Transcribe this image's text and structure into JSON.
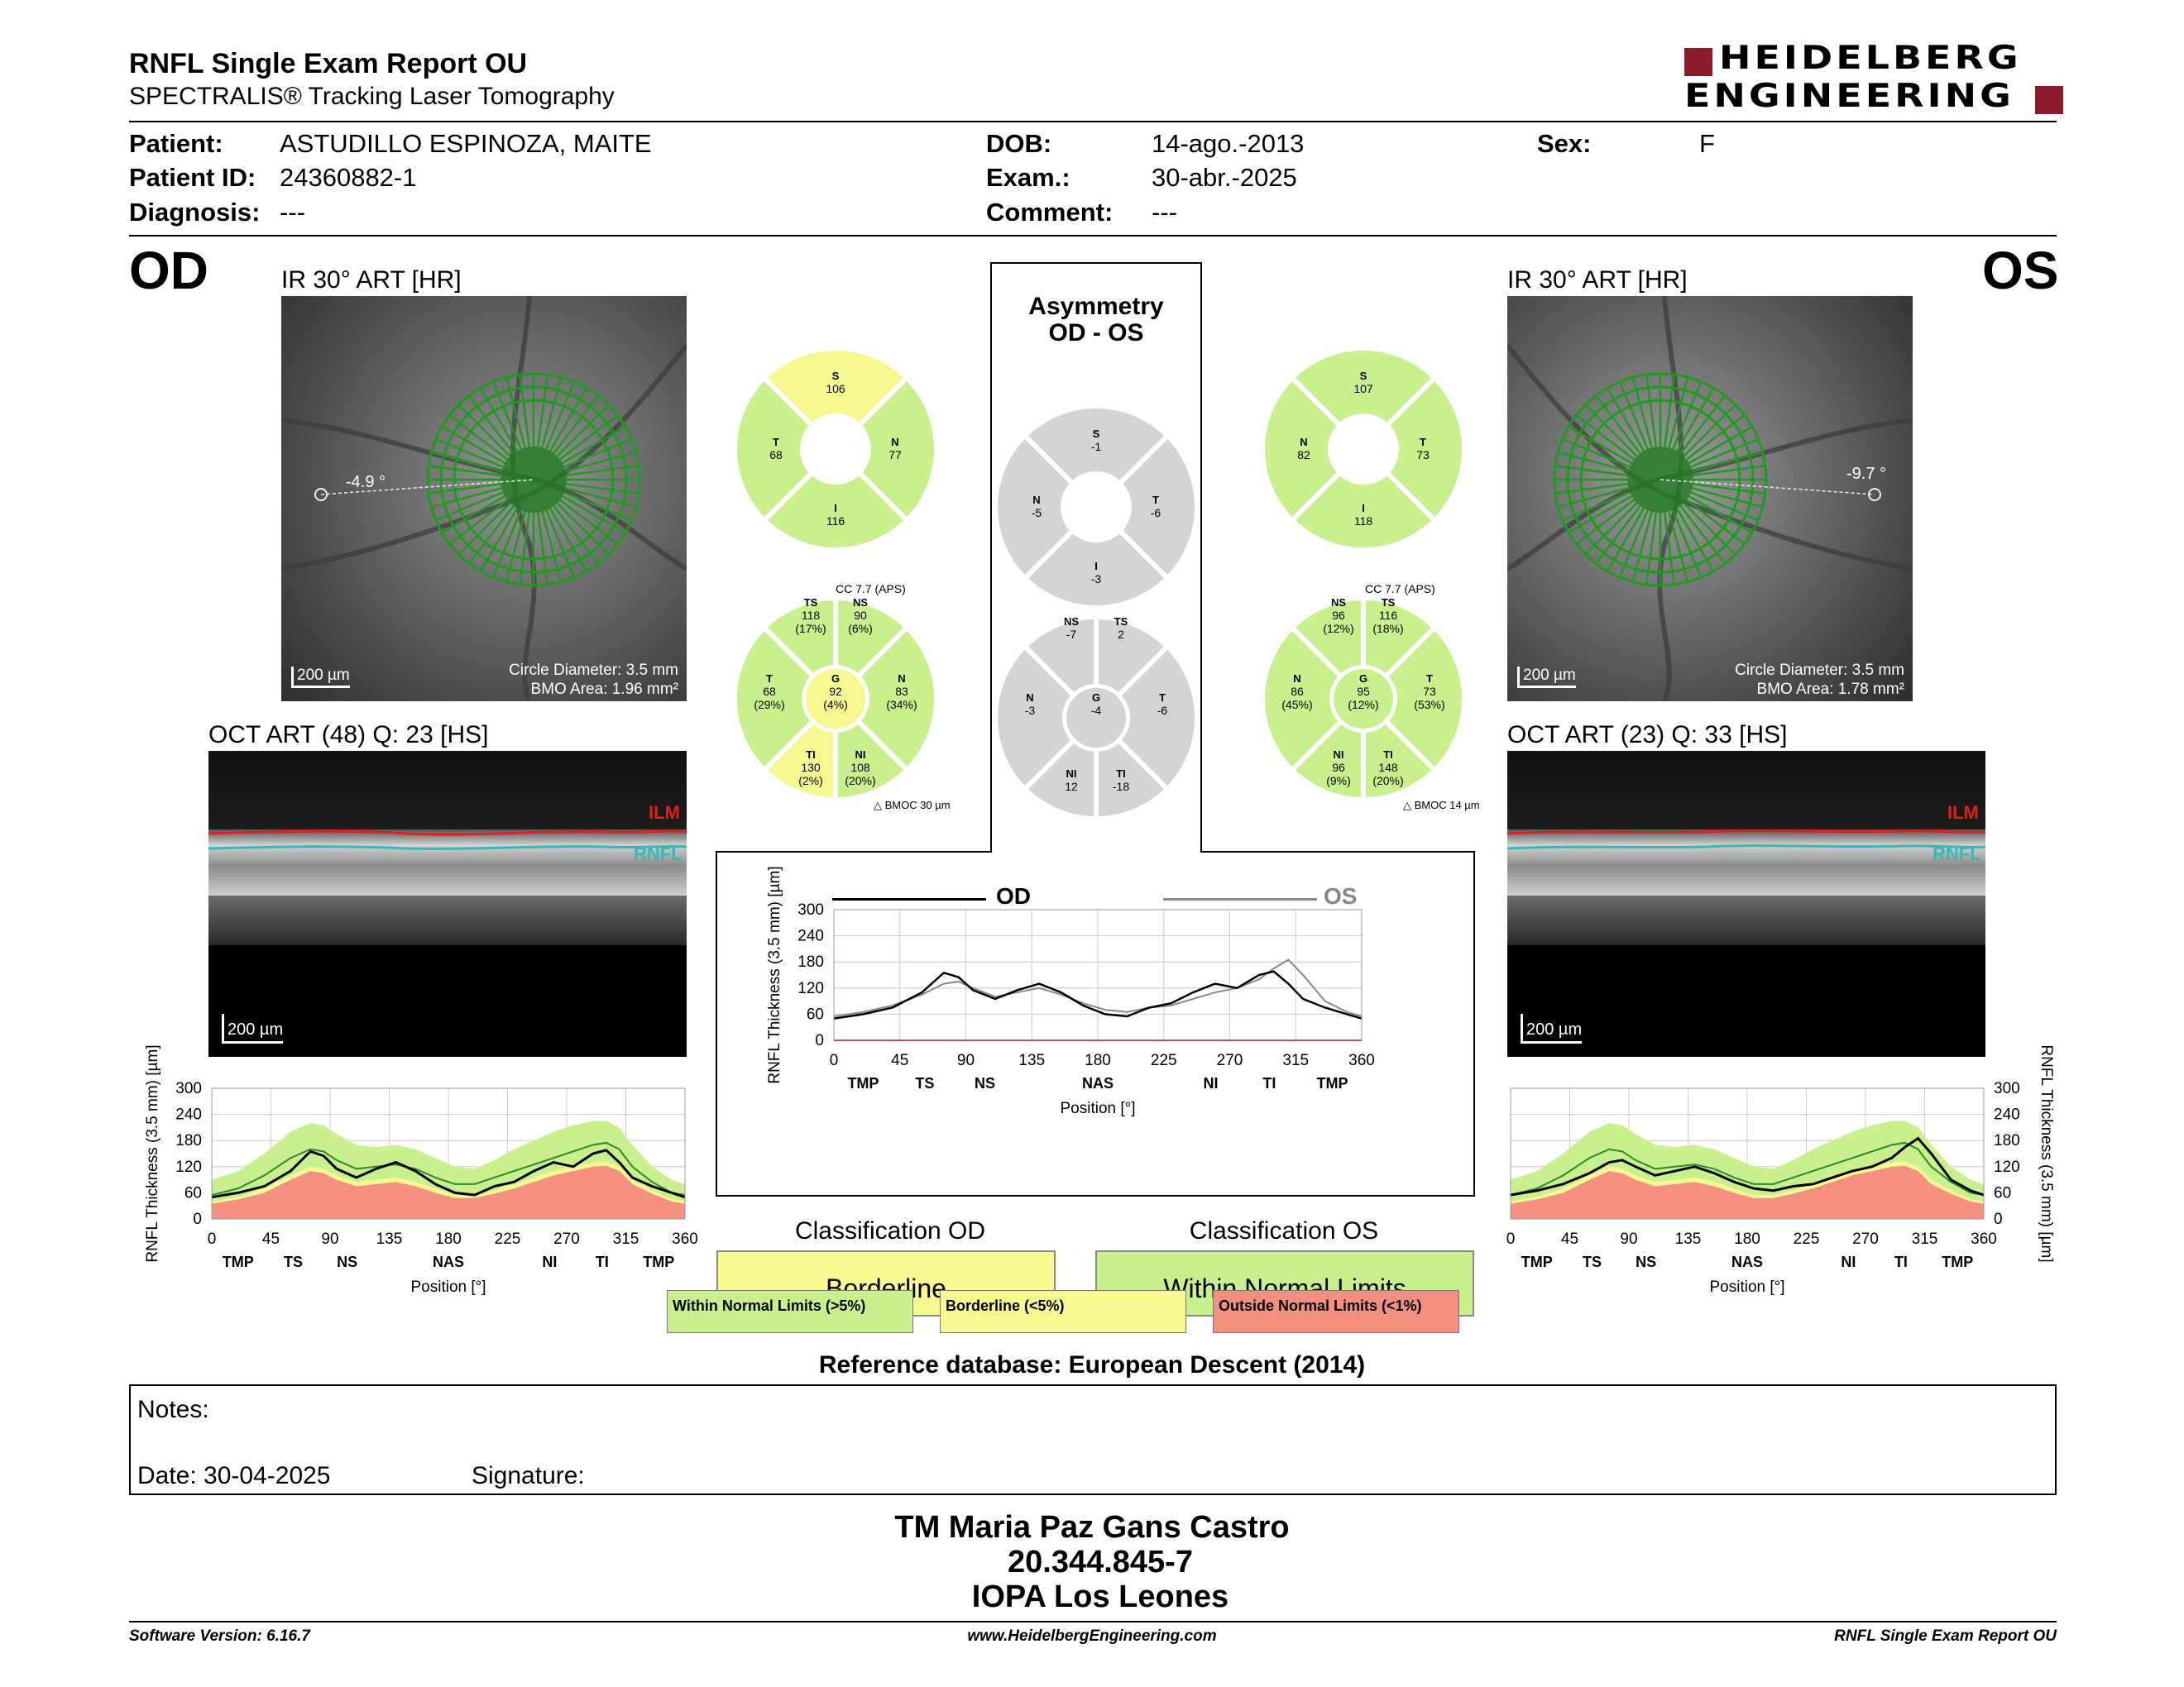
{
  "header": {
    "title": "RNFL Single Exam Report OU",
    "subtitle": "SPECTRALIS® Tracking Laser Tomography",
    "logo_line1": "HEIDELBERG",
    "logo_line2": "ENGINEERING"
  },
  "patient": {
    "patient_label": "Patient:",
    "patient_value": "ASTUDILLO ESPINOZA, MAITE",
    "id_label": "Patient ID:",
    "id_value": "24360882-1",
    "diagnosis_label": "Diagnosis:",
    "diagnosis_value": "---",
    "dob_label": "DOB:",
    "dob_value": "14-ago.-2013",
    "exam_label": "Exam.:",
    "exam_value": "30-abr.-2025",
    "comment_label": "Comment:",
    "comment_value": "---",
    "sex_label": "Sex:",
    "sex_value": "F"
  },
  "od": {
    "eye": "OD",
    "ir_title": "IR 30° ART [HR]",
    "angle": "-4.9 °",
    "circle_diameter": "Circle Diameter: 3.5 mm",
    "bmo_area": "BMO Area: 1.96 mm²",
    "scale": "200 µm",
    "oct_title": "OCT ART (48) Q: 23 [HS]",
    "oct_scale": "200 µm",
    "ilm": "ILM",
    "rnfl": "RNFL",
    "quad": {
      "S": "106",
      "T": "68",
      "N": "77",
      "I": "116"
    },
    "sector_cc": "CC 7.7 (APS)",
    "sector_bmoc": "BMOC 30 µm",
    "sectors": {
      "TS": "118",
      "TS_pct": "(17%)",
      "NS": "90",
      "NS_pct": "(6%)",
      "T": "68",
      "T_pct": "(29%)",
      "G": "92",
      "G_pct": "(4%)",
      "N": "83",
      "N_pct": "(34%)",
      "TI": "130",
      "TI_pct": "(2%)",
      "NI": "108",
      "NI_pct": "(20%)"
    },
    "classification_title": "Classification OD",
    "classification": "Borderline"
  },
  "os": {
    "eye": "OS",
    "ir_title": "IR 30° ART [HR]",
    "angle": "-9.7 °",
    "circle_diameter": "Circle Diameter: 3.5 mm",
    "bmo_area": "BMO Area: 1.78 mm²",
    "scale": "200 µm",
    "oct_title": "OCT ART (23) Q: 33 [HS]",
    "oct_scale": "200 µm",
    "ilm": "ILM",
    "rnfl": "RNFL",
    "quad": {
      "S": "107",
      "N": "82",
      "T": "73",
      "I": "118"
    },
    "sector_cc": "CC 7.7 (APS)",
    "sector_bmoc": "BMOC 14 µm",
    "sectors": {
      "NS": "96",
      "NS_pct": "(12%)",
      "TS": "116",
      "TS_pct": "(18%)",
      "N": "86",
      "N_pct": "(45%)",
      "G": "95",
      "G_pct": "(12%)",
      "T": "73",
      "T_pct": "(53%)",
      "NI": "96",
      "NI_pct": "(9%)",
      "TI": "148",
      "TI_pct": "(20%)"
    },
    "classification_title": "Classification OS",
    "classification": "Within Normal Limits"
  },
  "asymmetry": {
    "title1": "Asymmetry",
    "title2": "OD - OS",
    "quad": {
      "S": "-1",
      "N": "-5",
      "T": "-6",
      "I": "-3"
    },
    "sectors": {
      "NS": "-7",
      "TS": "2",
      "N": "-3",
      "G": "-4",
      "T": "-6",
      "NI": "12",
      "TI": "-18"
    }
  },
  "labels": {
    "S": "S",
    "T": "T",
    "N": "N",
    "I": "I",
    "G": "G",
    "TS": "TS",
    "NS": "NS",
    "TI": "TI",
    "NI": "NI"
  },
  "colors": {
    "normal": "#c8f08c",
    "borderline": "#f8f890",
    "outside": "#f49080",
    "gray": "#d4d4d4",
    "ring_green": "#1f9a1f"
  },
  "legend": {
    "wnl": "Within Normal Limits (>5%)",
    "borderline": "Borderline (<5%)",
    "onl": "Outside Normal Limits (<1%)"
  },
  "reference": "Reference database: European Descent (2014)",
  "notes": {
    "label": "Notes:",
    "date": "Date: 30-04-2025",
    "signature": "Signature:"
  },
  "footer_block": {
    "name": "TM Maria Paz Gans Castro",
    "id": "20.344.845-7",
    "org": "IOPA Los Leones"
  },
  "footer": {
    "version": "Software Version: 6.16.7",
    "url": "www.HeidelbergEngineering.com",
    "report": "RNFL Single Exam Report OU"
  },
  "chart_data": [
    {
      "type": "line",
      "name_ref": "OD profile",
      "ylabel": "RNFL Thickness (3.5 mm) [µm]",
      "xlabel": "Position [°]",
      "ylim": [
        0,
        300
      ],
      "xlim": [
        0,
        360
      ],
      "yticks": [
        0,
        60,
        120,
        180,
        240,
        300
      ],
      "xticks": [
        0,
        45,
        90,
        135,
        180,
        225,
        270,
        315,
        360
      ],
      "region_labels": [
        {
          "x": 20,
          "t": "TMP"
        },
        {
          "x": 62,
          "t": "TS"
        },
        {
          "x": 103,
          "t": "NS"
        },
        {
          "x": 180,
          "t": "NAS"
        },
        {
          "x": 257,
          "t": "NI"
        },
        {
          "x": 297,
          "t": "TI"
        },
        {
          "x": 340,
          "t": "TMP"
        }
      ],
      "x": [
        0,
        20,
        40,
        60,
        75,
        85,
        95,
        110,
        125,
        140,
        155,
        170,
        185,
        200,
        215,
        230,
        245,
        260,
        275,
        290,
        300,
        310,
        320,
        335,
        350,
        360
      ],
      "measured": [
        50,
        60,
        75,
        110,
        155,
        145,
        115,
        95,
        115,
        130,
        110,
        80,
        60,
        55,
        75,
        85,
        110,
        130,
        120,
        150,
        158,
        130,
        95,
        75,
        60,
        50
      ],
      "normal_upper": [
        90,
        110,
        150,
        200,
        220,
        215,
        195,
        170,
        165,
        170,
        160,
        140,
        120,
        115,
        135,
        160,
        180,
        200,
        215,
        225,
        225,
        210,
        170,
        120,
        90,
        80
      ],
      "normal_mean": [
        55,
        70,
        100,
        140,
        160,
        155,
        135,
        115,
        120,
        125,
        115,
        95,
        80,
        80,
        95,
        110,
        125,
        140,
        155,
        170,
        175,
        160,
        120,
        85,
        60,
        55
      ],
      "lower_border": [
        40,
        50,
        70,
        100,
        120,
        115,
        100,
        85,
        90,
        95,
        85,
        70,
        55,
        55,
        65,
        80,
        95,
        110,
        120,
        130,
        132,
        120,
        90,
        65,
        45,
        40
      ],
      "lower_normal": [
        35,
        45,
        60,
        90,
        110,
        105,
        90,
        75,
        80,
        85,
        75,
        60,
        48,
        48,
        58,
        70,
        85,
        100,
        110,
        120,
        122,
        110,
        80,
        58,
        40,
        35
      ]
    },
    {
      "type": "line",
      "name_ref": "Asymmetry profile",
      "ylabel": "RNFL Thickness (3.5 mm) [µm]",
      "xlabel": "Position [°]",
      "ylim": [
        0,
        300
      ],
      "xlim": [
        0,
        360
      ],
      "yticks": [
        0,
        60,
        120,
        180,
        240,
        300
      ],
      "xticks": [
        0,
        45,
        90,
        135,
        180,
        225,
        270,
        315,
        360
      ],
      "region_labels": [
        {
          "x": 20,
          "t": "TMP"
        },
        {
          "x": 62,
          "t": "TS"
        },
        {
          "x": 103,
          "t": "NS"
        },
        {
          "x": 180,
          "t": "NAS"
        },
        {
          "x": 257,
          "t": "NI"
        },
        {
          "x": 297,
          "t": "TI"
        },
        {
          "x": 340,
          "t": "TMP"
        }
      ],
      "series": [
        {
          "name": "OD",
          "x": [
            0,
            20,
            40,
            60,
            75,
            85,
            95,
            110,
            125,
            140,
            155,
            170,
            185,
            200,
            215,
            230,
            245,
            260,
            275,
            290,
            300,
            310,
            320,
            335,
            350,
            360
          ],
          "values": [
            50,
            60,
            75,
            110,
            155,
            145,
            115,
            95,
            115,
            130,
            110,
            80,
            60,
            55,
            75,
            85,
            110,
            130,
            120,
            150,
            158,
            130,
            95,
            75,
            60,
            50
          ]
        },
        {
          "name": "OS",
          "x": [
            0,
            20,
            40,
            60,
            75,
            85,
            95,
            110,
            125,
            140,
            155,
            170,
            185,
            200,
            215,
            230,
            245,
            260,
            275,
            290,
            300,
            310,
            320,
            335,
            350,
            360
          ],
          "values": [
            55,
            65,
            80,
            105,
            130,
            135,
            120,
            100,
            110,
            120,
            105,
            85,
            70,
            65,
            75,
            80,
            95,
            110,
            120,
            140,
            165,
            185,
            150,
            90,
            65,
            55
          ]
        }
      ]
    },
    {
      "type": "line",
      "name_ref": "OS profile",
      "ylabel": "RNFL Thickness (3.5 mm) [µm]",
      "xlabel": "Position [°]",
      "ylim": [
        0,
        300
      ],
      "xlim": [
        0,
        360
      ],
      "yticks": [
        0,
        60,
        120,
        180,
        240,
        300
      ],
      "xticks": [
        0,
        45,
        90,
        135,
        180,
        225,
        270,
        315,
        360
      ],
      "region_labels": [
        {
          "x": 20,
          "t": "TMP"
        },
        {
          "x": 62,
          "t": "TS"
        },
        {
          "x": 103,
          "t": "NS"
        },
        {
          "x": 180,
          "t": "NAS"
        },
        {
          "x": 257,
          "t": "NI"
        },
        {
          "x": 297,
          "t": "TI"
        },
        {
          "x": 340,
          "t": "TMP"
        }
      ],
      "x": [
        0,
        20,
        40,
        60,
        75,
        85,
        95,
        110,
        125,
        140,
        155,
        170,
        185,
        200,
        215,
        230,
        245,
        260,
        275,
        290,
        300,
        310,
        320,
        335,
        350,
        360
      ],
      "measured": [
        55,
        65,
        80,
        105,
        130,
        135,
        120,
        100,
        110,
        120,
        105,
        85,
        70,
        65,
        75,
        80,
        95,
        110,
        120,
        140,
        165,
        185,
        150,
        90,
        65,
        55
      ],
      "normal_upper": [
        90,
        110,
        150,
        200,
        220,
        215,
        195,
        170,
        165,
        170,
        160,
        140,
        120,
        115,
        135,
        160,
        180,
        200,
        215,
        225,
        225,
        210,
        170,
        120,
        90,
        80
      ],
      "normal_mean": [
        55,
        70,
        100,
        140,
        160,
        155,
        135,
        115,
        120,
        125,
        115,
        95,
        80,
        80,
        95,
        110,
        125,
        140,
        155,
        170,
        175,
        160,
        120,
        85,
        60,
        55
      ],
      "lower_border": [
        40,
        50,
        70,
        100,
        120,
        115,
        100,
        85,
        90,
        95,
        85,
        70,
        55,
        55,
        65,
        80,
        95,
        110,
        120,
        130,
        132,
        120,
        90,
        65,
        45,
        40
      ],
      "lower_normal": [
        35,
        45,
        60,
        90,
        110,
        105,
        90,
        75,
        80,
        85,
        75,
        60,
        48,
        48,
        58,
        70,
        85,
        100,
        110,
        120,
        122,
        110,
        80,
        58,
        40,
        35
      ]
    }
  ]
}
